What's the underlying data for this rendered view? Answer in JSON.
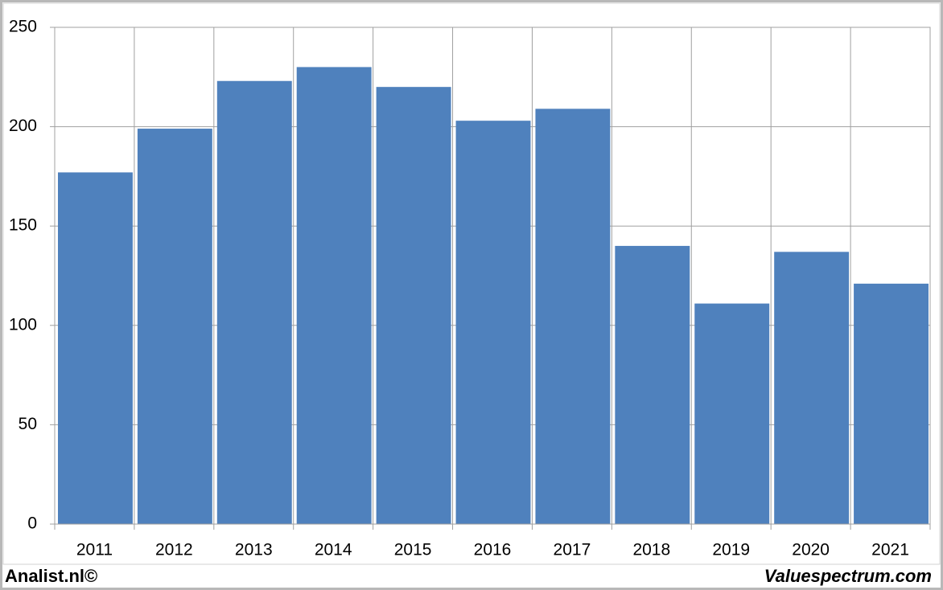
{
  "chart_data": {
    "type": "bar",
    "categories": [
      "2011",
      "2012",
      "2013",
      "2014",
      "2015",
      "2016",
      "2017",
      "2018",
      "2019",
      "2020",
      "2021"
    ],
    "values": [
      177,
      199,
      223,
      230,
      220,
      203,
      209,
      140,
      111,
      137,
      121
    ],
    "color": "#4f81bd",
    "ylim": [
      0,
      250
    ],
    "yticks": [
      0,
      50,
      100,
      150,
      200,
      250
    ],
    "grid": true,
    "annotations": [
      "Analist.nl©",
      "Valuespectrum.com"
    ]
  }
}
